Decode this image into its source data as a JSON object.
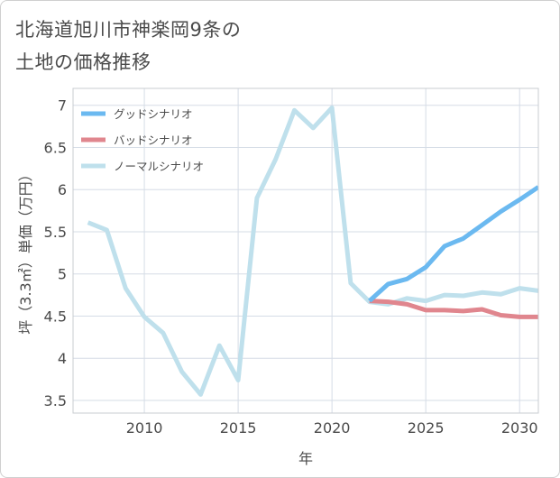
{
  "title_lines": [
    "北海道旭川市神楽岡9条の",
    "土地の価格推移"
  ],
  "chart_data": {
    "type": "line",
    "xlabel": "年",
    "ylabel": "坪（3.3㎡）単価（万円）",
    "xlim": [
      2006.2,
      2031
    ],
    "ylim": [
      3.35,
      7.2
    ],
    "x_ticks": [
      2010,
      2015,
      2020,
      2025,
      2030
    ],
    "y_ticks": [
      3.5,
      4,
      4.5,
      5,
      5.5,
      6,
      6.5,
      7
    ],
    "grid": true,
    "legend_position": "top-left",
    "series": [
      {
        "name": "グッドシナリオ",
        "color": "#6bb9f0",
        "x": [
          2022,
          2023,
          2024,
          2025,
          2026,
          2027,
          2028,
          2029,
          2030,
          2031
        ],
        "y": [
          4.68,
          4.88,
          4.94,
          5.08,
          5.33,
          5.42,
          5.58,
          5.74,
          5.88,
          6.03
        ]
      },
      {
        "name": "バッドシナリオ",
        "color": "#e0868e",
        "x": [
          2022,
          2023,
          2024,
          2025,
          2026,
          2027,
          2028,
          2029,
          2030,
          2031
        ],
        "y": [
          4.68,
          4.67,
          4.64,
          4.57,
          4.57,
          4.56,
          4.58,
          4.51,
          4.49,
          4.49
        ]
      },
      {
        "name": "ノーマルシナリオ",
        "color": "#bfe0ec",
        "x": [
          2007,
          2008,
          2009,
          2010,
          2011,
          2012,
          2013,
          2014,
          2015,
          2016,
          2017,
          2018,
          2019,
          2020,
          2021,
          2022,
          2023,
          2024,
          2025,
          2026,
          2027,
          2028,
          2029,
          2030,
          2031
        ],
        "y": [
          5.61,
          5.52,
          4.83,
          4.49,
          4.3,
          3.84,
          3.57,
          4.15,
          3.74,
          5.9,
          6.36,
          6.94,
          6.73,
          6.97,
          4.89,
          4.67,
          4.64,
          4.71,
          4.68,
          4.75,
          4.74,
          4.78,
          4.76,
          4.83,
          4.8
        ]
      }
    ]
  }
}
